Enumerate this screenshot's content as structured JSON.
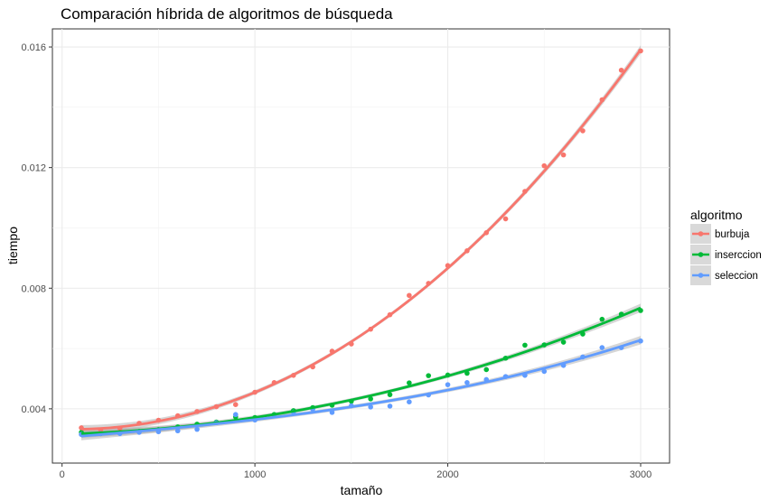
{
  "chart_data": {
    "type": "scatter",
    "title": "Comparación híbrida de algoritmos de búsqueda",
    "xlabel": "tamaño",
    "ylabel": "tiempo",
    "xlim": [
      -50,
      3150
    ],
    "ylim": [
      0.0022,
      0.0166
    ],
    "x_ticks": [
      0,
      1000,
      2000,
      3000
    ],
    "x_tick_labels": [
      "0",
      "1000",
      "2000",
      "3000"
    ],
    "y_ticks": [
      0.004,
      0.008,
      0.012,
      0.016
    ],
    "y_tick_labels": [
      "0.004",
      "0.008",
      "0.012",
      "0.016"
    ],
    "grid": true,
    "legend": {
      "title": "algoritmo",
      "position": "right"
    },
    "fit": {
      "method": "polynomial",
      "confidence_band": true
    },
    "series": [
      {
        "name": "burbuja",
        "color": "#F8766D",
        "x": [
          100,
          200,
          300,
          400,
          500,
          600,
          700,
          800,
          900,
          1000,
          1100,
          1200,
          1300,
          1400,
          1500,
          1600,
          1700,
          1800,
          1900,
          2000,
          2100,
          2200,
          2300,
          2400,
          2500,
          2600,
          2700,
          2800,
          2900,
          3000
        ],
        "y": [
          0.00337,
          0.0033,
          0.00335,
          0.00352,
          0.00362,
          0.00377,
          0.00391,
          0.00407,
          0.00414,
          0.00455,
          0.00487,
          0.00511,
          0.00539,
          0.00591,
          0.00615,
          0.00664,
          0.00712,
          0.00776,
          0.00816,
          0.00875,
          0.00924,
          0.00984,
          0.0103,
          0.01121,
          0.01206,
          0.01242,
          0.01322,
          0.01425,
          0.01523,
          0.01587
        ]
      },
      {
        "name": "inserccion",
        "color": "#00BA38",
        "x": [
          100,
          200,
          300,
          400,
          500,
          600,
          700,
          800,
          900,
          1000,
          1100,
          1200,
          1300,
          1400,
          1500,
          1600,
          1700,
          1800,
          1900,
          2000,
          2100,
          2200,
          2300,
          2400,
          2500,
          2600,
          2700,
          2800,
          2900,
          3000
        ],
        "y": [
          0.00322,
          0.00318,
          0.00321,
          0.00325,
          0.00331,
          0.0034,
          0.00349,
          0.00356,
          0.00373,
          0.00371,
          0.00381,
          0.00394,
          0.00404,
          0.00412,
          0.00425,
          0.00433,
          0.00447,
          0.00486,
          0.0051,
          0.00512,
          0.00518,
          0.0053,
          0.00568,
          0.00611,
          0.00612,
          0.00621,
          0.00648,
          0.00697,
          0.00714,
          0.00726
        ]
      },
      {
        "name": "seleccion",
        "color": "#619CFF",
        "x": [
          100,
          200,
          300,
          400,
          500,
          600,
          700,
          800,
          900,
          1000,
          1100,
          1200,
          1300,
          1400,
          1500,
          1600,
          1700,
          1800,
          1900,
          2000,
          2100,
          2200,
          2300,
          2400,
          2500,
          2600,
          2700,
          2800,
          2900,
          3000
        ],
        "y": [
          0.00315,
          0.00318,
          0.00318,
          0.00322,
          0.00324,
          0.00327,
          0.00332,
          0.00354,
          0.00381,
          0.00363,
          0.00377,
          0.00389,
          0.00399,
          0.00388,
          0.0041,
          0.00406,
          0.00409,
          0.00423,
          0.00446,
          0.0048,
          0.00487,
          0.00497,
          0.00507,
          0.00511,
          0.00524,
          0.00544,
          0.00572,
          0.00603,
          0.00603,
          0.00625
        ]
      }
    ]
  }
}
